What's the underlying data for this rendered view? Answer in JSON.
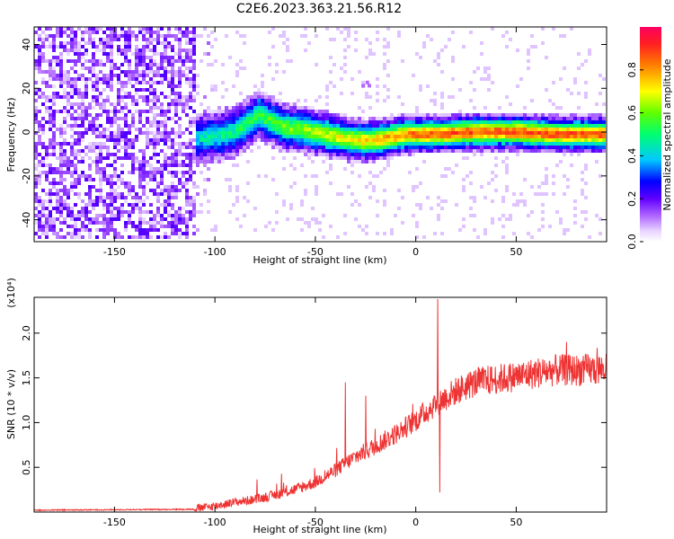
{
  "title": "C2E6.2023.363.21.56.R12",
  "chart_data": [
    {
      "type": "heatmap",
      "title": "C2E6.2023.363.21.56.R12",
      "xlabel": "Height of straight line (km)",
      "ylabel": "Frequency (Hz)",
      "xlim": [
        -190,
        95
      ],
      "ylim": [
        -50,
        48
      ],
      "x_ticks": [
        -150,
        -100,
        -50,
        0,
        50
      ],
      "y_ticks": [
        -40,
        -20,
        0,
        20,
        40
      ],
      "grid": false,
      "noise_region_x": [
        -190,
        -110
      ],
      "signal_start_x": -110,
      "ridge": [
        {
          "x": -110,
          "y": -3
        },
        {
          "x": -100,
          "y": -2
        },
        {
          "x": -90,
          "y": 0
        },
        {
          "x": -82,
          "y": 5
        },
        {
          "x": -78,
          "y": 8
        },
        {
          "x": -72,
          "y": 5
        },
        {
          "x": -65,
          "y": 2
        },
        {
          "x": -55,
          "y": 1
        },
        {
          "x": -45,
          "y": -1
        },
        {
          "x": -35,
          "y": -3
        },
        {
          "x": -25,
          "y": -4
        },
        {
          "x": -15,
          "y": -3
        },
        {
          "x": -5,
          "y": -1
        },
        {
          "x": 10,
          "y": -1
        },
        {
          "x": 30,
          "y": 0
        },
        {
          "x": 50,
          "y": 0
        },
        {
          "x": 70,
          "y": -1
        },
        {
          "x": 95,
          "y": -1
        }
      ],
      "colorbar": {
        "label": "Normalized spectral amplitude",
        "range": [
          0.0,
          1.0
        ],
        "ticks": [
          "0.0",
          "0.2",
          "0.4",
          "0.6",
          "0.8"
        ],
        "colors": [
          "#ffffff",
          "#cc99ff",
          "#7f00ff",
          "#0000ff",
          "#00bfff",
          "#00ff80",
          "#ffff00",
          "#ff8000",
          "#ff0040"
        ]
      }
    },
    {
      "type": "line",
      "xlabel": "Height of straight line (km)",
      "ylabel": "SNR (10 * v/v)",
      "y_multiplier": "(x10⁴)",
      "xlim": [
        -190,
        95
      ],
      "ylim": [
        0,
        2.4
      ],
      "x_ticks": [
        -150,
        -100,
        -50,
        0,
        50
      ],
      "y_ticks": [
        "0.5",
        "1.0",
        "1.5",
        "2.0"
      ],
      "color": "#ee3333",
      "grid": false,
      "trend": [
        {
          "x": -190,
          "y": 0.02
        },
        {
          "x": -110,
          "y": 0.03
        },
        {
          "x": -100,
          "y": 0.06
        },
        {
          "x": -90,
          "y": 0.1
        },
        {
          "x": -80,
          "y": 0.13
        },
        {
          "x": -70,
          "y": 0.18
        },
        {
          "x": -60,
          "y": 0.24
        },
        {
          "x": -50,
          "y": 0.32
        },
        {
          "x": -40,
          "y": 0.45
        },
        {
          "x": -30,
          "y": 0.6
        },
        {
          "x": -20,
          "y": 0.72
        },
        {
          "x": -10,
          "y": 0.85
        },
        {
          "x": 0,
          "y": 1.0
        },
        {
          "x": 10,
          "y": 1.18
        },
        {
          "x": 20,
          "y": 1.32
        },
        {
          "x": 30,
          "y": 1.42
        },
        {
          "x": 40,
          "y": 1.45
        },
        {
          "x": 50,
          "y": 1.48
        },
        {
          "x": 60,
          "y": 1.52
        },
        {
          "x": 70,
          "y": 1.55
        },
        {
          "x": 80,
          "y": 1.55
        },
        {
          "x": 95,
          "y": 1.56
        }
      ],
      "spikes": [
        {
          "x": -35,
          "y": 1.45
        },
        {
          "x": -25,
          "y": 1.3
        },
        {
          "x": 11,
          "y": 2.38
        },
        {
          "x": 12,
          "y": 0.22
        },
        {
          "x": 75,
          "y": 1.9
        }
      ]
    }
  ]
}
